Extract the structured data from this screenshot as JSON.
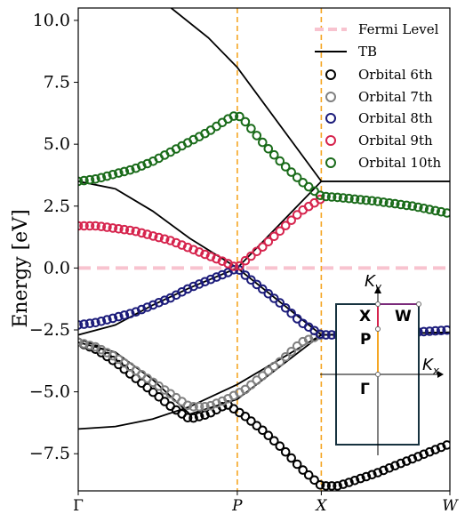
{
  "chart_data": {
    "type": "scatter",
    "ylabel": "Energy [eV]",
    "ylim": [
      -9.0,
      10.5
    ],
    "xlim": [
      0,
      1.0
    ],
    "yticks": [
      {
        "value": 10.0,
        "label": "10.0"
      },
      {
        "value": 7.5,
        "label": "7.5"
      },
      {
        "value": 5.0,
        "label": "5.0"
      },
      {
        "value": 2.5,
        "label": "2.5"
      },
      {
        "value": 0.0,
        "label": "0.0"
      },
      {
        "value": -2.5,
        "label": "−2.5"
      },
      {
        "value": -5.0,
        "label": "−5.0"
      },
      {
        "value": -7.5,
        "label": "−7.5"
      }
    ],
    "xticks": [
      {
        "value": 0.0,
        "label": "Γ",
        "italic": false
      },
      {
        "value": 0.428,
        "label": "P",
        "italic": true
      },
      {
        "value": 0.654,
        "label": "X",
        "italic": true
      },
      {
        "value": 1.0,
        "label": "W",
        "italic": true
      }
    ],
    "vlines": [
      0.428,
      0.654
    ],
    "fermi_level": 0.0,
    "legend": {
      "placement": "top-right",
      "fermi": "Fermi Level",
      "tb": "TB",
      "orbitals": [
        "Orbital 6th",
        "Orbital 7th",
        "Orbital 8th",
        "Orbital 9th",
        "Orbital 10th"
      ]
    },
    "colors": {
      "fermi": "#f8c3cf",
      "tb": "#000000",
      "vline": "#f5a623",
      "orbital_6": "#000000",
      "orbital_7": "#808080",
      "orbital_8": "#1b1b7a",
      "orbital_9": "#d6244d",
      "orbital_10": "#1a6b1a"
    },
    "tb_bands": [
      {
        "x": [
          0.0,
          0.1,
          0.2,
          0.3,
          0.428,
          0.654,
          1.0
        ],
        "y": [
          -6.5,
          -6.4,
          -6.1,
          -5.6,
          -4.7,
          -2.7,
          -2.6
        ]
      },
      {
        "x": [
          0.0,
          0.1,
          0.2,
          0.3,
          0.428,
          0.654,
          1.0
        ],
        "y": [
          -2.7,
          -2.3,
          -1.5,
          -0.8,
          0.0,
          3.5,
          3.5
        ]
      },
      {
        "x": [
          0.0,
          0.1,
          0.2,
          0.3,
          0.428,
          0.654,
          1.0
        ],
        "y": [
          3.5,
          3.2,
          2.3,
          1.2,
          0.0,
          -2.7,
          -2.6
        ]
      },
      {
        "x": [
          0.25,
          0.35,
          0.428,
          0.654,
          1.0
        ],
        "y": [
          10.5,
          9.3,
          8.1,
          3.5,
          3.5
        ]
      },
      {
        "x": [
          0.0,
          0.1,
          0.2,
          0.3,
          0.428,
          0.654,
          1.0
        ],
        "y": [
          -3.0,
          -3.4,
          -4.5,
          -5.9,
          -5.3,
          -2.7,
          -2.6
        ]
      }
    ],
    "series": [
      {
        "name": "Orbital 6th",
        "x": [
          0.0,
          0.05,
          0.1,
          0.15,
          0.2,
          0.25,
          0.3,
          0.35,
          0.4,
          0.45,
          0.5,
          0.55,
          0.6,
          0.654,
          0.7,
          0.8,
          0.9,
          1.0
        ],
        "y": [
          -3.0,
          -3.3,
          -3.8,
          -4.4,
          -5.0,
          -5.6,
          -6.1,
          -5.9,
          -5.5,
          -6.0,
          -6.6,
          -7.3,
          -8.1,
          -8.8,
          -8.8,
          -8.3,
          -7.7,
          -7.1
        ]
      },
      {
        "name": "Orbital 7th",
        "x": [
          0.0,
          0.05,
          0.1,
          0.15,
          0.2,
          0.25,
          0.3,
          0.35,
          0.4,
          0.45,
          0.5,
          0.55,
          0.6,
          0.654
        ],
        "y": [
          -3.0,
          -3.2,
          -3.6,
          -4.1,
          -4.6,
          -5.1,
          -5.6,
          -5.6,
          -5.3,
          -4.9,
          -4.3,
          -3.7,
          -3.0,
          -2.7
        ]
      },
      {
        "name": "Orbital 8th",
        "x": [
          0.0,
          0.05,
          0.1,
          0.15,
          0.2,
          0.25,
          0.3,
          0.35,
          0.4,
          0.428,
          0.45,
          0.5,
          0.55,
          0.6,
          0.654,
          0.7,
          0.8,
          0.9,
          1.0
        ],
        "y": [
          -2.3,
          -2.2,
          -2.0,
          -1.8,
          -1.5,
          -1.2,
          -0.8,
          -0.5,
          -0.2,
          0.0,
          -0.3,
          -0.9,
          -1.5,
          -2.2,
          -2.7,
          -2.7,
          -2.7,
          -2.6,
          -2.5
        ]
      },
      {
        "name": "Orbital 9th",
        "x": [
          0.0,
          0.05,
          0.1,
          0.15,
          0.2,
          0.25,
          0.3,
          0.35,
          0.4,
          0.428,
          0.45,
          0.5,
          0.55,
          0.6,
          0.654
        ],
        "y": [
          1.7,
          1.7,
          1.6,
          1.5,
          1.3,
          1.1,
          0.8,
          0.5,
          0.2,
          0.0,
          0.3,
          0.9,
          1.6,
          2.3,
          2.8
        ]
      },
      {
        "name": "Orbital 10th",
        "x": [
          0.0,
          0.05,
          0.1,
          0.15,
          0.2,
          0.25,
          0.3,
          0.35,
          0.4,
          0.428,
          0.45,
          0.5,
          0.55,
          0.6,
          0.654,
          0.7,
          0.8,
          0.9,
          1.0
        ],
        "y": [
          3.5,
          3.6,
          3.8,
          4.0,
          4.3,
          4.7,
          5.1,
          5.5,
          6.0,
          6.2,
          5.9,
          5.0,
          4.2,
          3.5,
          2.9,
          2.85,
          2.7,
          2.5,
          2.2
        ]
      }
    ]
  },
  "inset": {
    "axis_main_x": "K",
    "axis_sub_x": "x",
    "axis_main_y": "K",
    "axis_sub_y": "y",
    "label_gamma": "Γ",
    "label_p": "P",
    "label_x": "X",
    "label_w": "W",
    "colors": {
      "box": "#17323f",
      "path_gp": "#f5a623",
      "path_px": "#d6244d",
      "path_xw": "#7a2a7a"
    }
  }
}
